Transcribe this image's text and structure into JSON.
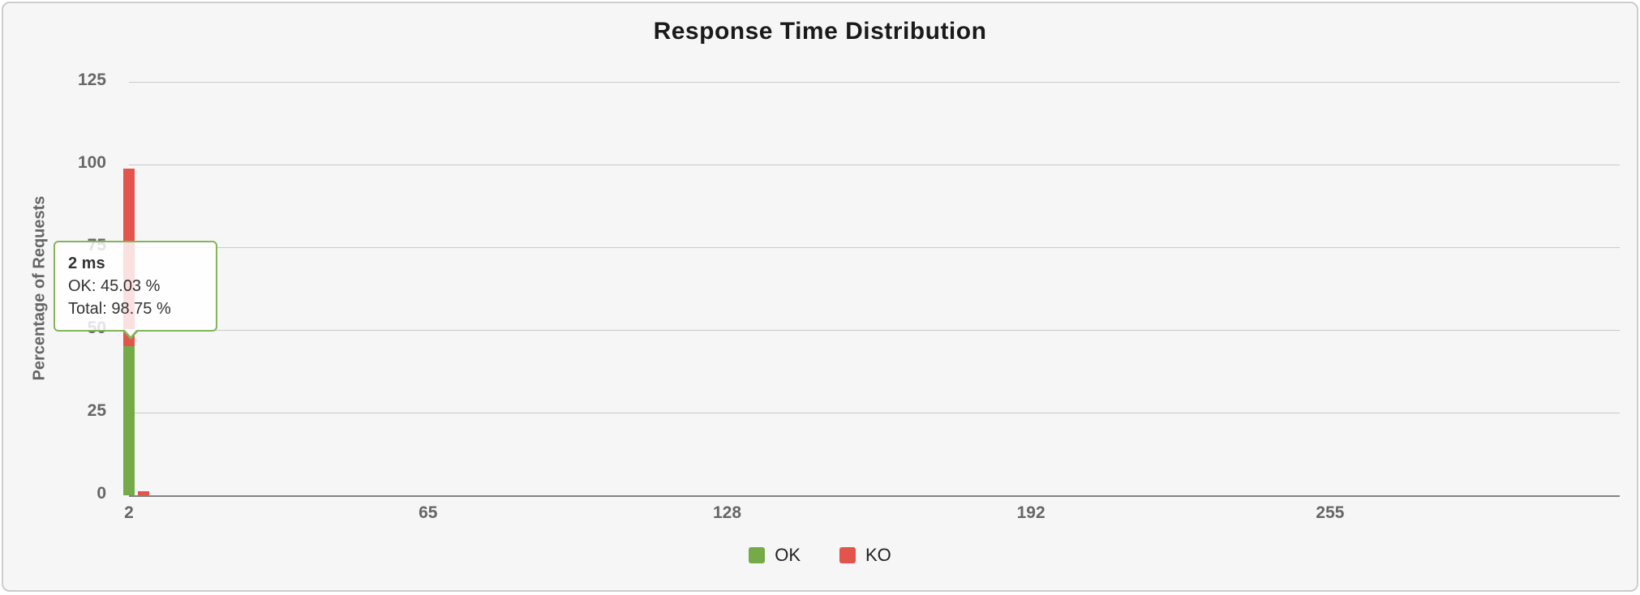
{
  "panel": {
    "background": "#f6f6f6",
    "border_color": "#cccccc"
  },
  "chart_data": {
    "type": "bar",
    "stacked": true,
    "title": "Response Time Distribution",
    "xlabel": "",
    "ylabel": "Percentage of Requests",
    "ylim": [
      0,
      125
    ],
    "yticks": [
      0,
      25,
      50,
      75,
      100,
      125
    ],
    "xlim": [
      2,
      316
    ],
    "xticks": [
      2,
      65,
      128,
      192,
      255
    ],
    "bar_width_x": 2.4,
    "grid": true,
    "legend_position": "bottom",
    "series": [
      {
        "name": "OK",
        "color": "#74ab48",
        "points": [
          {
            "x": 2,
            "y": 45.03
          }
        ]
      },
      {
        "name": "KO",
        "color": "#e2544c",
        "points": [
          {
            "x": 2,
            "y": 53.72
          },
          {
            "x": 5,
            "y": 1.25
          }
        ]
      }
    ],
    "legend": [
      {
        "label": "OK",
        "color": "#74ab48"
      },
      {
        "label": "KO",
        "color": "#e2544c"
      }
    ]
  },
  "tooltip": {
    "title": "2 ms",
    "lines": [
      "OK: 45.03 %",
      "Total: 98.75 %"
    ],
    "border_color": "#85b45a",
    "background": "rgba(255,255,255,0.82)"
  }
}
